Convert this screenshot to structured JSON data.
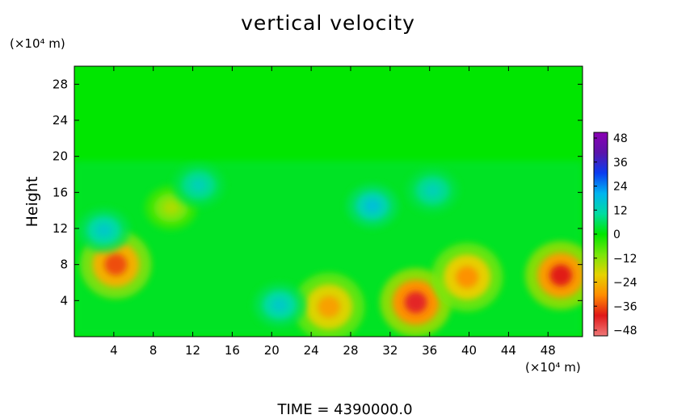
{
  "chart_data": {
    "type": "heatmap",
    "title": "vertical velocity",
    "ylabel": "Height",
    "x_unit_label": "(×10⁴ m)",
    "y_unit_label": "(×10⁴ m)",
    "xlim": [
      0,
      51.5
    ],
    "ylim": [
      0,
      30
    ],
    "x_ticks": [
      4,
      8,
      12,
      16,
      20,
      24,
      28,
      32,
      36,
      40,
      44,
      48
    ],
    "y_ticks": [
      4,
      8,
      12,
      16,
      20,
      24,
      28
    ],
    "colorbar": {
      "range": [
        -48,
        48
      ],
      "tick_labels": [
        "48",
        "36",
        "24",
        "12",
        "0",
        "−12",
        "−24",
        "−36",
        "−48"
      ],
      "colors": [
        "#f07878",
        "#e01818",
        "#ff8c00",
        "#e6d200",
        "#78e60a",
        "#00e600",
        "#00dca0",
        "#00b4f0",
        "#0a3cf0",
        "#5a14aa",
        "#8c00b4"
      ]
    },
    "features": [
      {
        "x": 4.2,
        "y": 8.0,
        "value": -34,
        "kind": "downdraft"
      },
      {
        "x": 9.8,
        "y": 14.3,
        "value": -14,
        "kind": "downdraft"
      },
      {
        "x": 25.8,
        "y": 3.3,
        "value": -26,
        "kind": "downdraft"
      },
      {
        "x": 34.6,
        "y": 3.8,
        "value": -40,
        "kind": "downdraft"
      },
      {
        "x": 39.8,
        "y": 6.6,
        "value": -28,
        "kind": "downdraft"
      },
      {
        "x": 49.3,
        "y": 6.8,
        "value": -38,
        "kind": "downdraft"
      },
      {
        "x": 20.8,
        "y": 3.5,
        "value": 14,
        "kind": "updraft"
      },
      {
        "x": 30.2,
        "y": 14.5,
        "value": 16,
        "kind": "updraft"
      },
      {
        "x": 12.6,
        "y": 16.8,
        "value": 12,
        "kind": "updraft"
      },
      {
        "x": 36.3,
        "y": 16.2,
        "value": 12,
        "kind": "updraft"
      },
      {
        "x": 3.0,
        "y": 11.8,
        "value": 14,
        "kind": "updraft"
      }
    ]
  },
  "footer": {
    "time_label": "TIME  =  4390000.0"
  }
}
